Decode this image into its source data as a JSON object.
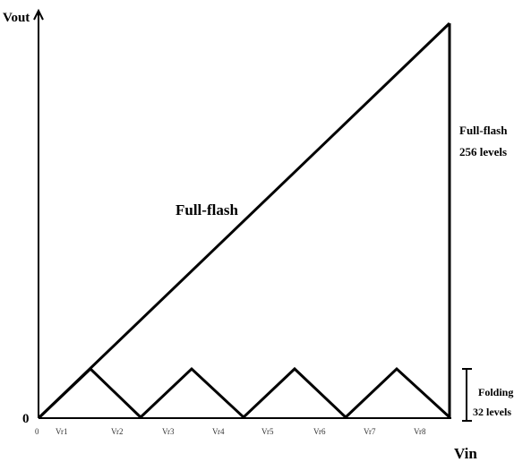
{
  "diagram": {
    "y_axis_label": "Vout",
    "x_axis_label": "Vin",
    "origin_label": "0",
    "x_origin_tick": "0",
    "x_ticks": [
      "Vr1",
      "Vr2",
      "Vr3",
      "Vr4",
      "Vr5",
      "Vr6",
      "Vr7",
      "Vr8"
    ],
    "fullflash_curve_label": "Full-flash",
    "fullflash_annotation": [
      "Full-flash",
      "256 levels"
    ],
    "folding_annotation": [
      "Folding:",
      "32 levels"
    ]
  }
}
